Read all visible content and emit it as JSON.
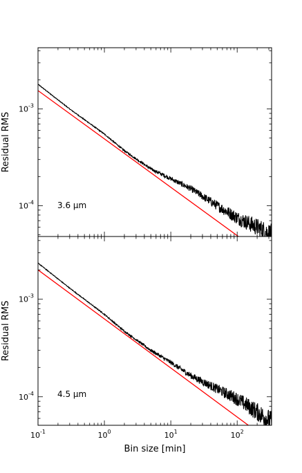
{
  "chart_data": [
    {
      "type": "line",
      "panel_label": "3.6 μm",
      "xlabel": "",
      "ylabel": "Residual RMS",
      "xscale": "log",
      "yscale": "log",
      "xlim": [
        0.1,
        330
      ],
      "ylim": [
        4.8e-05,
        0.0043
      ],
      "x_tick_labels": [],
      "y_tick_labels": [
        "10^-3",
        "10^-4"
      ],
      "grid": false,
      "series": [
        {
          "color": "#000000",
          "noisy": true,
          "points": [
            [
              0.1,
              0.0018
            ],
            [
              0.3,
              0.001
            ],
            [
              1,
              0.00055
            ],
            [
              2,
              0.00037
            ],
            [
              5,
              0.00024
            ],
            [
              10,
              0.00019
            ],
            [
              20,
              0.00015
            ],
            [
              50,
              0.0001
            ],
            [
              100,
              7.5e-05
            ],
            [
              200,
              6e-05
            ],
            [
              330,
              5e-05
            ]
          ]
        },
        {
          "color": "#ff0000",
          "noisy": false,
          "points": [
            [
              0.1,
              0.00155
            ],
            [
              330,
              2.7e-05
            ]
          ]
        }
      ]
    },
    {
      "type": "line",
      "panel_label": "4.5 μm",
      "xlabel": "Bin size [min]",
      "ylabel": "Residual RMS",
      "xscale": "log",
      "yscale": "log",
      "xlim": [
        0.1,
        330
      ],
      "ylim": [
        5.1e-05,
        0.0044
      ],
      "x_tick_labels": [
        "10^-1",
        "10^0",
        "10^1",
        "10^2"
      ],
      "y_tick_labels": [
        "10^-3",
        "10^-4"
      ],
      "grid": false,
      "series": [
        {
          "color": "#000000",
          "noisy": true,
          "points": [
            [
              0.1,
              0.00235
            ],
            [
              0.3,
              0.0013
            ],
            [
              1,
              0.0007
            ],
            [
              2,
              0.00047
            ],
            [
              5,
              0.0003
            ],
            [
              10,
              0.000225
            ],
            [
              20,
              0.000165
            ],
            [
              50,
              0.00012
            ],
            [
              100,
              9.5e-05
            ],
            [
              200,
              7e-05
            ],
            [
              330,
              5.5e-05
            ]
          ]
        },
        {
          "color": "#ff0000",
          "noisy": false,
          "points": [
            [
              0.1,
              0.002
            ],
            [
              330,
              3.4e-05
            ]
          ]
        }
      ]
    }
  ]
}
